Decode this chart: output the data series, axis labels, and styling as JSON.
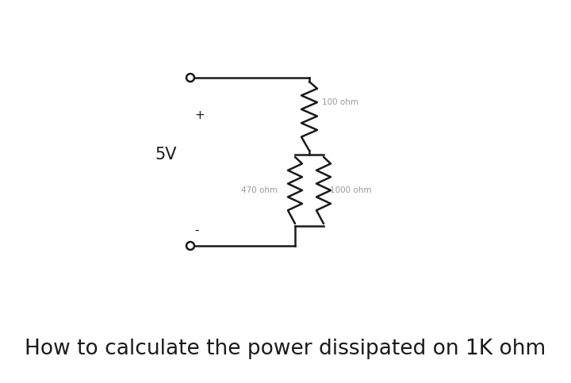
{
  "bg_color": "#ffffff",
  "title_text": "How to calculate the power dissipated on 1K ohm",
  "title_fontsize": 19,
  "title_color": "#1a1a1a",
  "label_5V": "5V",
  "label_plus": "+",
  "label_minus": "-",
  "label_100": "100 ohm",
  "label_470": "470 ohm",
  "label_1000": "1000 ohm",
  "line_color": "#1a1a1a",
  "label_color_main": "#1a1a1a",
  "label_color_faded": "#999999",
  "line_width": 1.8,
  "figsize": [
    7.2,
    4.83
  ],
  "dpi": 100
}
